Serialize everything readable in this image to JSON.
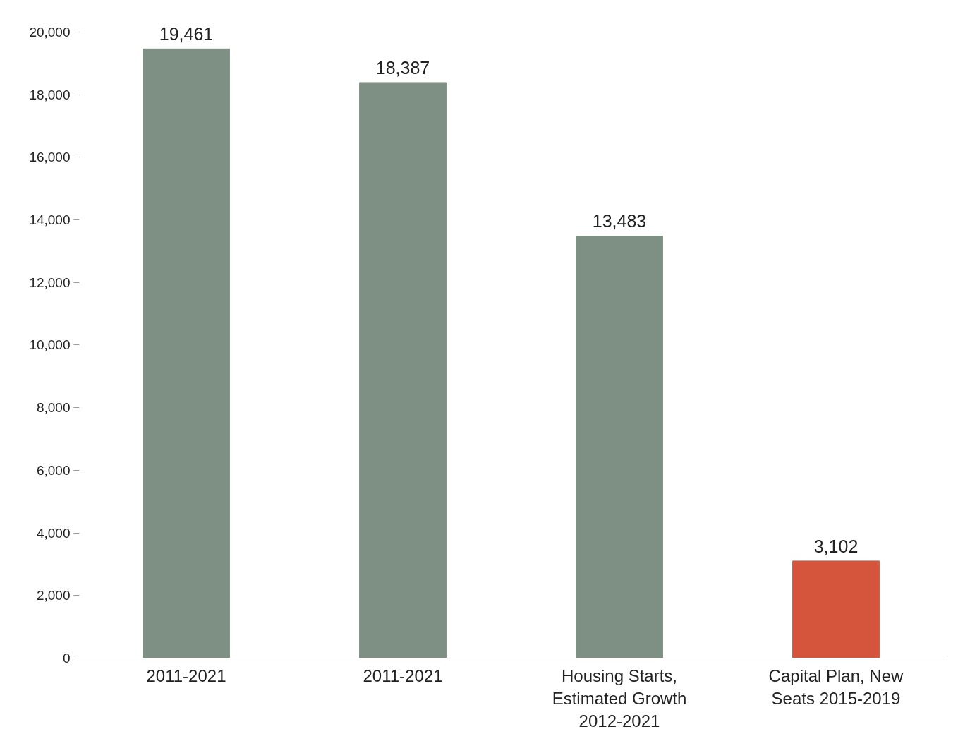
{
  "chart_data": {
    "type": "bar",
    "categories": [
      "2011-2021",
      "2011-2021",
      "Housing Starts,\nEstimated Growth\n2012-2021",
      "Capital Plan, New\nSeats 2015-2019"
    ],
    "values": [
      19461,
      18387,
      13483,
      3102
    ],
    "colors": [
      "#7d9083",
      "#7d9083",
      "#7d9083",
      "#d4553b"
    ],
    "ylim": [
      0,
      20000
    ],
    "yticks": [
      {
        "value": 0,
        "label": "0"
      },
      {
        "value": 2000,
        "label": "2,000"
      },
      {
        "value": 4000,
        "label": "4,000"
      },
      {
        "value": 6000,
        "label": "6,000"
      },
      {
        "value": 8000,
        "label": "8,000"
      },
      {
        "value": 10000,
        "label": "10,000"
      },
      {
        "value": 12000,
        "label": "12,000"
      },
      {
        "value": 14000,
        "label": "14,000"
      },
      {
        "value": 16000,
        "label": "16,000"
      },
      {
        "value": 18000,
        "label": "18,000"
      },
      {
        "value": 20000,
        "label": "20,000"
      }
    ],
    "value_labels": [
      "19,461",
      "18,387",
      "13,483",
      "3,102"
    ],
    "grid": false
  }
}
